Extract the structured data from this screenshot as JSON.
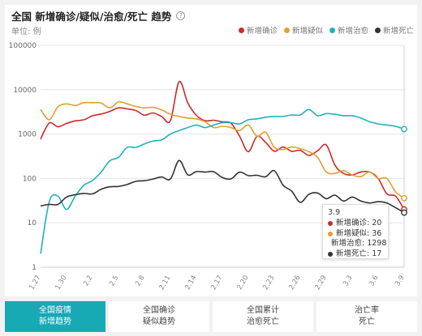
{
  "header": {
    "title": "全国 新增确诊/疑似/治愈/死亡 趋势",
    "help_icon": "question-circle-icon",
    "unit": "单位: 例"
  },
  "tooltip": {
    "date": "3.9",
    "rows": [
      {
        "label": "新增确诊: 20",
        "color": "#cc2a2a"
      },
      {
        "label": "新增疑似: 36",
        "color": "#e0a030"
      },
      {
        "label": "新增治愈: 1298",
        "color": "#1fb3b8"
      },
      {
        "label": "新增死亡: 17",
        "color": "#333333"
      }
    ]
  },
  "tabs": [
    {
      "line1": "全国疫情",
      "line2": "新增趋势",
      "active": true
    },
    {
      "line1": "全国确诊",
      "line2": "疑似趋势",
      "active": false
    },
    {
      "line1": "全国累计",
      "line2": "治愈死亡",
      "active": false
    },
    {
      "line1": "治亡率",
      "line2": "死亡",
      "active": false
    }
  ],
  "chart_data": {
    "type": "line",
    "y_scale": "log",
    "ylim": [
      1,
      100000
    ],
    "y_ticks": [
      1,
      10,
      100,
      1000,
      10000,
      100000
    ],
    "y_tick_labels": [
      "1",
      "10",
      "100",
      "1000",
      "10000",
      "100000"
    ],
    "x": [
      "1.27",
      "1.28",
      "1.29",
      "1.30",
      "1.31",
      "2.1",
      "2.2",
      "2.3",
      "2.4",
      "2.5",
      "2.6",
      "2.7",
      "2.8",
      "2.9",
      "2.10",
      "2.11",
      "2.12",
      "2.13",
      "2.14",
      "2.15",
      "2.16",
      "2.17",
      "2.18",
      "2.19",
      "2.20",
      "2.21",
      "2.22",
      "2.23",
      "2.24",
      "2.25",
      "2.26",
      "2.27",
      "2.28",
      "2.29",
      "3.1",
      "3.2",
      "3.3",
      "3.4",
      "3.5",
      "3.6",
      "3.7",
      "3.8",
      "3.9"
    ],
    "x_tick_labels": [
      "1.27",
      "1.30",
      "2.2",
      "2.5",
      "2.8",
      "2.11",
      "2.14",
      "2.17",
      "2.20",
      "2.23",
      "2.26",
      "2.29",
      "3.3",
      "3.6",
      "3.9"
    ],
    "legend": {
      "position": "top-right"
    },
    "grid": "horizontal",
    "series": [
      {
        "name": "新增确诊",
        "color": "#cc2a2a",
        "values": [
          770,
          1770,
          1460,
          1740,
          1980,
          2100,
          2590,
          2830,
          3240,
          3900,
          3700,
          3400,
          2660,
          3000,
          2480,
          2020,
          15150,
          5090,
          2640,
          2010,
          2050,
          1890,
          1750,
          890,
          400,
          890,
          650,
          410,
          510,
          410,
          430,
          330,
          420,
          570,
          200,
          130,
          120,
          140,
          140,
          100,
          45,
          40,
          20
        ]
      },
      {
        "name": "新增疑似",
        "color": "#e0a030",
        "values": [
          3600,
          2100,
          4100,
          4800,
          4400,
          5100,
          5100,
          5000,
          3900,
          5300,
          4800,
          4200,
          3900,
          4000,
          3500,
          2800,
          2500,
          2300,
          2200,
          1900,
          1400,
          1500,
          1400,
          1200,
          1600,
          890,
          1100,
          500,
          450,
          510,
          470,
          400,
          300,
          140,
          130,
          150,
          120,
          110,
          140,
          100,
          100,
          50,
          36
        ]
      },
      {
        "name": "新增治愈",
        "color": "#1fb3b8",
        "values": [
          2,
          30,
          40,
          20,
          40,
          70,
          90,
          140,
          250,
          300,
          500,
          500,
          600,
          700,
          740,
          1000,
          1200,
          1400,
          1600,
          1400,
          1600,
          1800,
          1800,
          1700,
          2100,
          2200,
          2400,
          2500,
          2500,
          2700,
          2700,
          3600,
          2600,
          2900,
          2800,
          2600,
          2600,
          2300,
          1900,
          1700,
          1600,
          1500,
          1298
        ]
      },
      {
        "name": "新增死亡",
        "color": "#333333",
        "values": [
          24,
          26,
          26,
          38,
          43,
          46,
          45,
          57,
          65,
          66,
          73,
          86,
          89,
          97,
          108,
          97,
          254,
          121,
          143,
          139,
          142,
          105,
          98,
          139,
          116,
          118,
          109,
          150,
          71,
          52,
          29,
          44,
          47,
          35,
          42,
          31,
          38,
          31,
          28,
          30,
          28,
          22,
          17
        ]
      }
    ]
  }
}
